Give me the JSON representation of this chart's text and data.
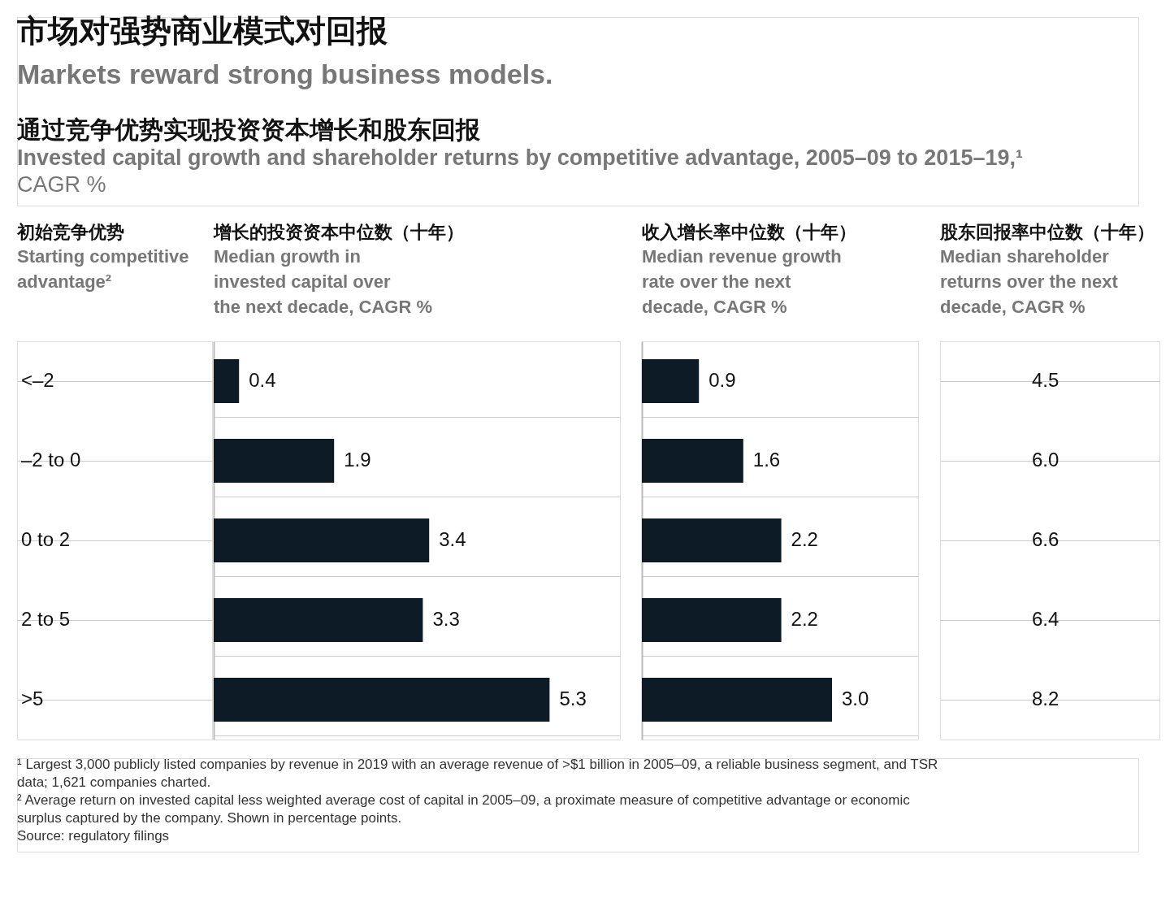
{
  "chart_data": [
    {
      "type": "other",
      "title": "市场对强势商业模式对回报",
      "subtitle": "Markets reward strong business models.",
      "annotations": [
        "通过竞争优势实现投资资本增长和股东回报",
        "Invested capital growth and shareholder returns by competitive advantage, 2005–09 to 2015–19,¹",
        "CAGR %"
      ]
    },
    {
      "type": "bar",
      "orientation": "horizontal",
      "title": "增长的投资资本中位数（十年）",
      "subtitle": "Median growth in invested capital over the next decade, CAGR %",
      "ylabel": "初始竞争优势\nStarting competitive advantage²",
      "categories": [
        "<–2",
        "–2 to 0",
        "0 to 2",
        "2 to 5",
        ">5"
      ],
      "values": [
        0.4,
        1.9,
        3.4,
        3.3,
        5.3
      ],
      "value_labels": [
        "0.4",
        "1.9",
        "3.4",
        "3.3",
        "5.3"
      ],
      "color": "#0d1b26",
      "tick_labels": "y",
      "grid": "y"
    },
    {
      "type": "bar",
      "orientation": "horizontal",
      "title": "收入增长率中位数（十年）",
      "subtitle": "Median revenue growth rate over the next decade, CAGR %",
      "categories": [
        null,
        null,
        null,
        null,
        null
      ],
      "values": [
        0.9,
        1.6,
        2.2,
        2.2,
        3.0
      ],
      "value_labels": [
        "0.9",
        "1.6",
        "2.2",
        "2.2",
        "3.0"
      ],
      "color": "#0d1b26",
      "tick_labels": false,
      "grid": "y"
    },
    {
      "type": "other",
      "title": "股东回报率中位数（十年）",
      "subtitle": "Median shareholder returns over the next decade, CAGR %",
      "values": [
        4.5,
        6.0,
        6.6,
        6.4,
        8.2
      ],
      "value_labels": [
        "4.5",
        "6.0",
        "6.6",
        "6.4",
        "8.2"
      ]
    },
    {
      "type": "other",
      "annotations": [
        "¹ Largest 3,000 publicly listed companies by revenue in 2019 with an average revenue of >$1 billion in 2005–09, a reliable business segment, and TSR data; 1,621 companies charted.",
        "² Average return on invested capital less weighted average cost of capital in 2005–09, a proximate measure of competitive advantage or economic surplus captured by the company. Shown in percentage points.",
        "Source: regulatory filings"
      ]
    }
  ]
}
